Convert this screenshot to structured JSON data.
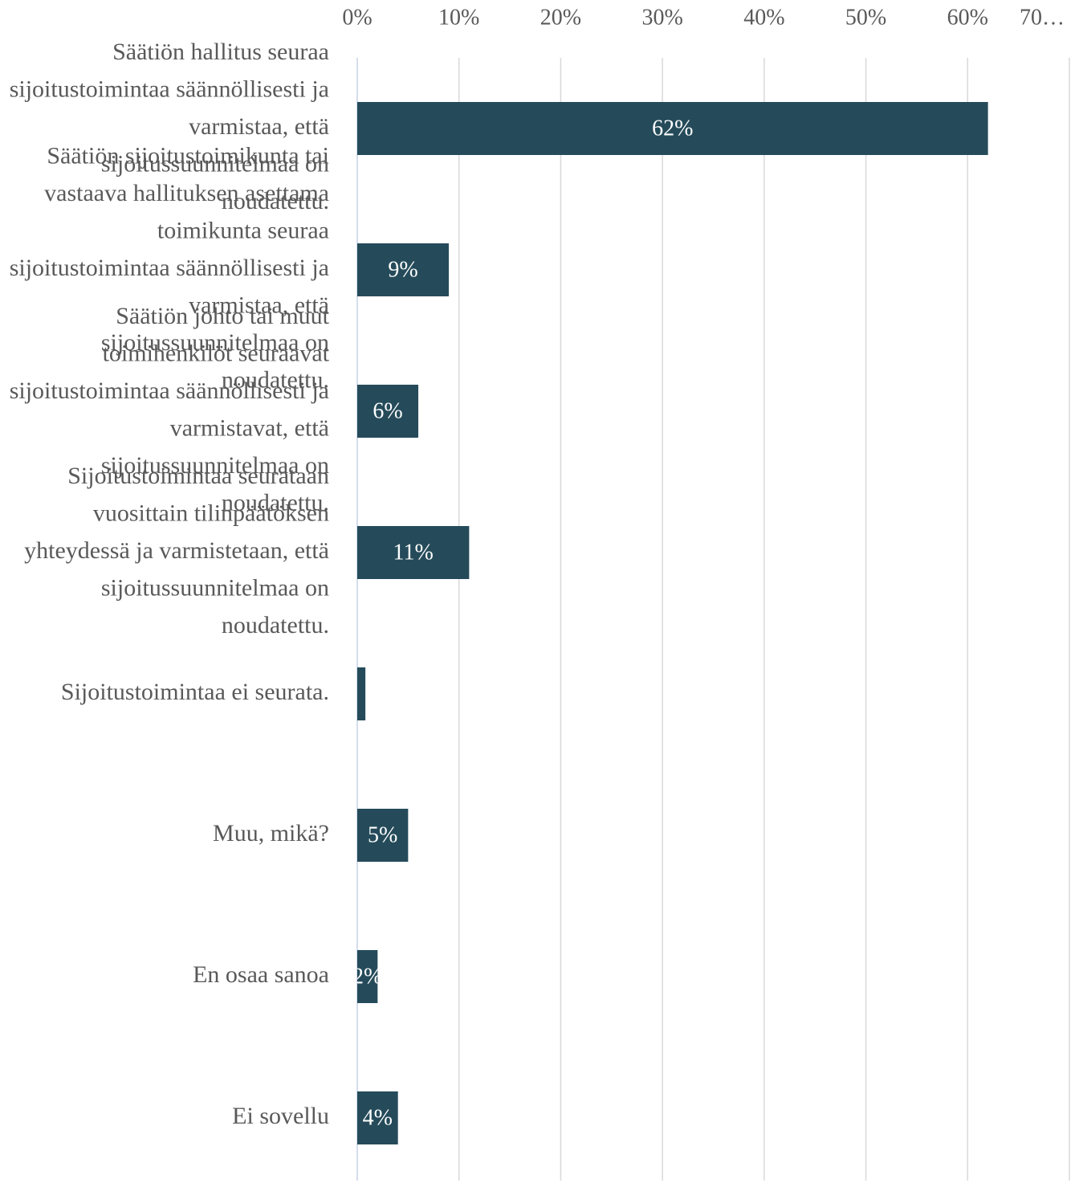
{
  "chart_data": {
    "type": "barh",
    "categories": [
      "Säätiön hallitus seuraa sijoitustoimintaa säännöllisesti ja varmistaa, että sijoitussuunnitelmaa on noudatettu.",
      "Säätiön sijoitustoimikunta tai vastaava hallituksen asettama toimikunta seuraa sijoitustoimintaa säännöllisesti ja varmistaa, että sijoitussuunnitelmaa on noudatettu.",
      "Säätiön johto tai muut toimihenkilöt seuraavat sijoitustoimintaa säännöllisesti ja varmistavat, että sijoitussuunnitelmaa on noudatettu.",
      "Sijoitustoimintaa seurataan vuosittain tilinpäätöksen yhteydessä ja varmistetaan, että sijoitussuunnitelmaa on noudatettu.",
      "Sijoitustoimintaa ei seurata.",
      "Muu, mikä?",
      "En osaa sanoa",
      "Ei sovellu"
    ],
    "values": [
      62,
      9,
      6,
      11,
      0.8,
      5,
      2,
      4
    ],
    "value_labels": [
      "62%",
      "9%",
      "6%",
      "11%",
      null,
      "5%",
      "2%",
      "4%"
    ],
    "color": "#254b5a",
    "xlim": [
      0,
      70
    ],
    "xticks": [
      {
        "value": 0,
        "label": "0%"
      },
      {
        "value": 10,
        "label": "10%"
      },
      {
        "value": 20,
        "label": "20%"
      },
      {
        "value": 30,
        "label": "30%"
      },
      {
        "value": 40,
        "label": "40%"
      },
      {
        "value": 50,
        "label": "50%"
      },
      {
        "value": 60,
        "label": "60%"
      },
      {
        "value": 70,
        "label": "70…"
      }
    ],
    "grid": true
  }
}
